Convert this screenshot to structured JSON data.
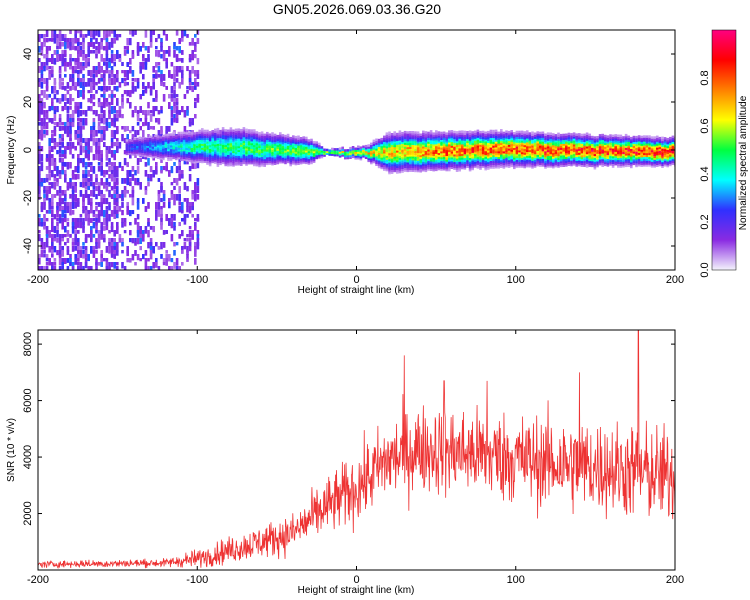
{
  "title": "GN05.2026.069.03.36.G20",
  "chart_data": [
    {
      "type": "heatmap",
      "xlabel": "Height of straight line (km)",
      "ylabel": "Frequency (Hz)",
      "xlim": [
        -200,
        200
      ],
      "ylim": [
        -50,
        50
      ],
      "xticks": [
        "-200",
        "-100",
        "0",
        "100",
        "200"
      ],
      "yticks": [
        "-40",
        "-20",
        "0",
        "20",
        "40"
      ],
      "colorbar": {
        "label": "Normalized spectral amplitude",
        "range": [
          0,
          1
        ],
        "ticks": [
          "0.0",
          "0.2",
          "0.4",
          "0.6",
          "0.8"
        ],
        "colors": [
          "#f4f4fc",
          "#8a2be2",
          "#3030ff",
          "#00ffff",
          "#00ff40",
          "#ffff00",
          "#ff8000",
          "#ff0000",
          "#ff0080"
        ]
      },
      "band": {
        "noise_region_x": [
          -200,
          -100
        ],
        "band_start_x": -145,
        "center_freq_hz": [
          {
            "x": -130,
            "f": 1
          },
          {
            "x": -80,
            "f": 1
          },
          {
            "x": -25,
            "f": -1
          },
          {
            "x": 0,
            "f": -1.5
          },
          {
            "x": 100,
            "f": 0
          },
          {
            "x": 200,
            "f": -1
          }
        ],
        "half_width_hz": [
          {
            "x": -145,
            "w": 3
          },
          {
            "x": -80,
            "w": 6
          },
          {
            "x": -30,
            "w": 4
          },
          {
            "x": -20,
            "w": 1
          },
          {
            "x": 5,
            "w": 2
          },
          {
            "x": 20,
            "w": 6
          },
          {
            "x": 200,
            "w": 4
          }
        ],
        "peak_amplitude": [
          {
            "x": -145,
            "a": 0.25
          },
          {
            "x": -100,
            "a": 0.5
          },
          {
            "x": -60,
            "a": 0.55
          },
          {
            "x": -25,
            "a": 0.6
          },
          {
            "x": 60,
            "a": 0.85
          },
          {
            "x": 200,
            "a": 0.95
          }
        ]
      }
    },
    {
      "type": "line",
      "xlabel": "Height of straight line (km)",
      "ylabel": "SNR (10 * v/v)",
      "xlim": [
        -200,
        200
      ],
      "ylim": [
        0,
        8500
      ],
      "xticks": [
        "-200",
        "-100",
        "0",
        "100",
        "200"
      ],
      "yticks": [
        "2000",
        "4000",
        "6000",
        "8000"
      ],
      "color": "#ee3333",
      "series": [
        {
          "trend": [
            {
              "x": -200,
              "y": 200
            },
            {
              "x": -120,
              "y": 250
            },
            {
              "x": -100,
              "y": 400
            },
            {
              "x": -80,
              "y": 700
            },
            {
              "x": -60,
              "y": 1000
            },
            {
              "x": -40,
              "y": 1300
            },
            {
              "x": -20,
              "y": 2200
            },
            {
              "x": 0,
              "y": 2900
            },
            {
              "x": 20,
              "y": 3900
            },
            {
              "x": 40,
              "y": 4300
            },
            {
              "x": 80,
              "y": 4100
            },
            {
              "x": 120,
              "y": 3800
            },
            {
              "x": 160,
              "y": 3600
            },
            {
              "x": 200,
              "y": 3300
            }
          ],
          "spread": [
            {
              "x": -200,
              "y": 120
            },
            {
              "x": -120,
              "y": 150
            },
            {
              "x": -90,
              "y": 400
            },
            {
              "x": -40,
              "y": 700
            },
            {
              "x": -20,
              "y": 1000
            },
            {
              "x": 25,
              "y": 1500
            },
            {
              "x": 200,
              "y": 1700
            }
          ],
          "peaks": [
            {
              "x": 30,
              "y": 7600
            },
            {
              "x": 55,
              "y": 6700
            },
            {
              "x": 82,
              "y": 6700
            },
            {
              "x": 140,
              "y": 7000
            },
            {
              "x": 177,
              "y": 8500
            }
          ]
        }
      ]
    }
  ]
}
